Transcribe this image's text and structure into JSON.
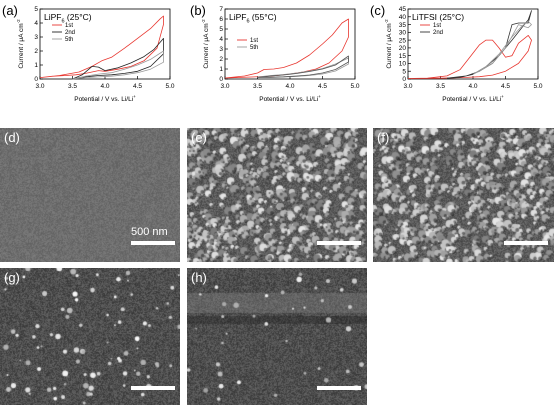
{
  "chart_data": [
    {
      "type": "line",
      "panel_label": "(a)",
      "title": "LiPF",
      "title_sub": "6",
      "title_tail": " (25°C)",
      "xlabel": "Potential / V vs. Li/Li",
      "xlabel_sup": "+",
      "ylabel": "Current / μA cm",
      "ylabel_sup": "-2",
      "xlim": [
        3.0,
        5.0
      ],
      "ylim": [
        0,
        5
      ],
      "xticks": [
        "3.0",
        "3.5",
        "4.0",
        "4.5",
        "5.0"
      ],
      "yticks": [
        "0",
        "1",
        "2",
        "3",
        "4",
        "5"
      ],
      "legend": "top-left",
      "series": [
        {
          "name": "1st",
          "color": "#e8362f",
          "x": [
            3.0,
            3.3,
            3.6,
            3.8,
            3.95,
            4.1,
            4.3,
            4.5,
            4.7,
            4.85,
            4.9,
            4.9,
            4.8,
            4.6,
            4.4,
            4.2,
            4.0,
            3.9,
            3.8,
            3.7,
            3.55,
            3.4,
            3.2,
            3.0
          ],
          "y": [
            0.1,
            0.25,
            0.5,
            0.9,
            1.3,
            1.55,
            2.2,
            2.9,
            3.6,
            4.3,
            4.5,
            3.9,
            2.2,
            1.3,
            0.9,
            0.7,
            0.55,
            0.6,
            0.5,
            0.4,
            0.3,
            0.25,
            0.2,
            0.1
          ]
        },
        {
          "name": "2nd",
          "color": "#222222",
          "x": [
            3.5,
            3.65,
            3.8,
            3.9,
            4.0,
            4.2,
            4.4,
            4.6,
            4.75,
            4.9,
            4.9,
            4.7,
            4.5,
            4.3,
            4.1,
            3.9,
            3.8,
            3.6,
            3.5
          ],
          "y": [
            0.0,
            0.3,
            0.9,
            0.85,
            0.6,
            0.8,
            1.15,
            1.6,
            2.1,
            2.9,
            1.8,
            0.9,
            0.55,
            0.4,
            0.3,
            0.25,
            0.2,
            0.1,
            0.0
          ]
        },
        {
          "name": "5th",
          "color": "#9a9a9a",
          "x": [
            3.5,
            3.7,
            3.9,
            4.1,
            4.3,
            4.5,
            4.7,
            4.9,
            4.9,
            4.7,
            4.5,
            4.3,
            4.1,
            3.9,
            3.7,
            3.5
          ],
          "y": [
            0.0,
            0.2,
            0.35,
            0.45,
            0.7,
            1.0,
            1.4,
            2.0,
            1.2,
            0.7,
            0.45,
            0.3,
            0.2,
            0.15,
            0.1,
            0.0
          ]
        }
      ]
    },
    {
      "type": "line",
      "panel_label": "(b)",
      "title": "LiPF",
      "title_sub": "6",
      "title_tail": " (55°C)",
      "xlabel": "Potential / V vs. Li/Li",
      "xlabel_sup": "+",
      "ylabel": "Current / μA cm",
      "ylabel_sup": "-2",
      "xlim": [
        3.0,
        5.0
      ],
      "ylim": [
        0,
        7
      ],
      "xticks": [
        "3.0",
        "3.5",
        "4.0",
        "4.5",
        "5.0"
      ],
      "yticks": [
        "0",
        "1",
        "2",
        "3",
        "4",
        "5",
        "6",
        "7"
      ],
      "legend": "center-left",
      "series": [
        {
          "name": "1st",
          "color": "#e8362f",
          "x": [
            3.0,
            3.3,
            3.5,
            3.6,
            3.75,
            3.9,
            4.1,
            4.3,
            4.5,
            4.65,
            4.8,
            4.9,
            4.9,
            4.8,
            4.6,
            4.4,
            4.2,
            4.0,
            3.8,
            3.6,
            3.4,
            3.2,
            3.0
          ],
          "y": [
            0.1,
            0.3,
            0.6,
            0.95,
            1.0,
            1.15,
            1.6,
            2.4,
            3.5,
            4.4,
            5.6,
            6.0,
            4.2,
            2.8,
            1.6,
            1.0,
            0.7,
            0.5,
            0.35,
            0.25,
            0.2,
            0.15,
            0.1
          ]
        },
        {
          "name": "5th",
          "color": "#9a9a9a",
          "x": [
            3.5,
            3.7,
            3.9,
            4.1,
            4.3,
            4.5,
            4.7,
            4.9,
            4.9,
            4.7,
            4.5,
            4.3,
            4.1,
            3.9,
            3.7,
            3.5
          ],
          "y": [
            0.2,
            0.35,
            0.45,
            0.6,
            0.8,
            1.05,
            1.5,
            2.1,
            1.5,
            0.8,
            0.5,
            0.35,
            0.25,
            0.2,
            0.15,
            0.2
          ]
        },
        {
          "name": "",
          "color": "#555555",
          "x": [
            3.5,
            3.7,
            3.9,
            4.1,
            4.3,
            4.5,
            4.7,
            4.9,
            4.9,
            4.7,
            4.5,
            4.3,
            4.1,
            3.9,
            3.7,
            3.5
          ],
          "y": [
            0.15,
            0.3,
            0.4,
            0.55,
            0.75,
            1.0,
            1.4,
            2.3,
            1.7,
            0.95,
            0.6,
            0.4,
            0.3,
            0.22,
            0.18,
            0.15
          ]
        }
      ]
    },
    {
      "type": "line",
      "panel_label": "(c)",
      "title": "LiTFSI",
      "title_sub": "",
      "title_tail": " (25°C)",
      "xlabel": "Potential / V vs. Li/Li",
      "xlabel_sup": "+",
      "ylabel": "Current / μA cm",
      "ylabel_sup": "-2",
      "xlim": [
        3.0,
        5.0
      ],
      "ylim": [
        0,
        45
      ],
      "xticks": [
        "3.0",
        "3.5",
        "4.0",
        "4.5",
        "5.0"
      ],
      "yticks": [
        "0",
        "5",
        "10",
        "15",
        "20",
        "25",
        "30",
        "35",
        "40",
        "45"
      ],
      "legend": "top-left",
      "series": [
        {
          "name": "1st",
          "color": "#e8362f",
          "x": [
            3.0,
            3.3,
            3.6,
            3.8,
            3.95,
            4.1,
            4.2,
            4.3,
            4.4,
            4.5,
            4.6,
            4.7,
            4.85,
            4.9,
            4.85,
            4.7,
            4.5,
            4.3,
            4.1,
            3.9,
            3.7,
            3.5,
            3.3,
            3.0
          ],
          "y": [
            0.3,
            0.5,
            2,
            6,
            14,
            22,
            25,
            25,
            20,
            14,
            15,
            23,
            28,
            25,
            18,
            10,
            5,
            2.5,
            1.5,
            1,
            0.8,
            0.5,
            0.4,
            0.3
          ]
        },
        {
          "name": "2nd",
          "color": "#333333",
          "x": [
            3.6,
            3.8,
            4.0,
            4.2,
            4.4,
            4.6,
            4.75,
            4.85,
            4.9,
            4.85,
            4.7,
            4.6,
            4.5,
            4.3,
            4.1,
            3.9,
            3.7,
            3.6
          ],
          "y": [
            0.5,
            1,
            3,
            8,
            15,
            25,
            33,
            38,
            44,
            36,
            36,
            35,
            20,
            10,
            5,
            2,
            1,
            0.5
          ]
        },
        {
          "name": "",
          "color": "#9a9a9a",
          "x": [
            4.0,
            4.2,
            4.4,
            4.6,
            4.75,
            4.85,
            4.9,
            4.85,
            4.7,
            4.5,
            4.3,
            4.1,
            4.0
          ],
          "y": [
            3,
            8,
            16,
            27,
            34,
            37,
            35,
            33,
            35,
            20,
            10,
            5,
            3
          ]
        }
      ]
    }
  ],
  "micrographs": [
    {
      "label": "(d)",
      "scale": "500 nm"
    },
    {
      "label": "(e)"
    },
    {
      "label": "(f)"
    },
    {
      "label": "(g)"
    },
    {
      "label": "(h)"
    }
  ]
}
